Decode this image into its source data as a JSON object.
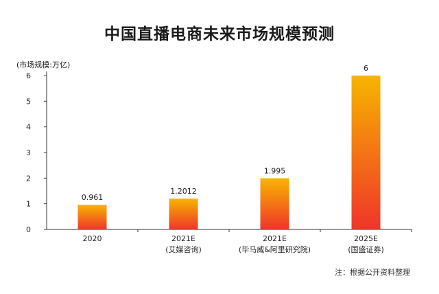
{
  "page": {
    "title": "中国直播电商未来市场规模预测",
    "unit_label": "(市场规模:万亿)",
    "note": "注：根据公开资料整理"
  },
  "chart_data": {
    "type": "bar",
    "title": "中国直播电商未来市场规模预测",
    "ylabel": "(市场规模:万亿)",
    "xlabel": "",
    "ylim": [
      0,
      6
    ],
    "yticks": [
      "0",
      "1",
      "2",
      "3",
      "4",
      "5",
      "6"
    ],
    "grid": false,
    "categories": [
      {
        "line1": "2020",
        "line2": ""
      },
      {
        "line1": "2021E",
        "line2": "(艾媒咨询)"
      },
      {
        "line1": "2021E",
        "line2": "(毕马威&阿里研究院)"
      },
      {
        "line1": "2025E",
        "line2": "(国盛证券)"
      }
    ],
    "values": [
      0.961,
      1.2012,
      1.995,
      6
    ],
    "value_labels": [
      "0.961",
      "1.2012",
      "1.995",
      "6"
    ],
    "colors": {
      "bar_top": "#f7b500",
      "bar_bottom": "#f0342a",
      "axis": "#333333"
    }
  }
}
